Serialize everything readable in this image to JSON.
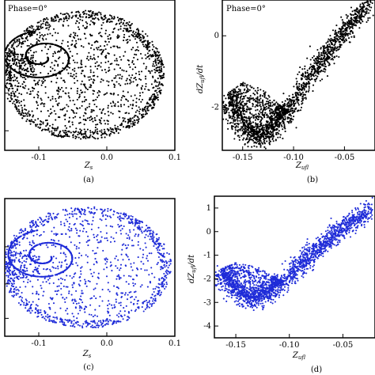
{
  "chart_data": [
    {
      "type": "scatter",
      "panel": "a",
      "caption": "(a)",
      "annotation": "Phase=0°",
      "xlabel": "Z_s",
      "ylabel": "",
      "xlim": [
        -0.15,
        0.1
      ],
      "xticks": [
        -0.1,
        0.0,
        0.1
      ],
      "xtick_labels": [
        "-0.1",
        "0.0",
        "0.1"
      ],
      "color": "#000000",
      "attractor": {
        "cx": -0.035,
        "cy": 0.5,
        "rx": 0.12,
        "ry": 0.43,
        "hole_x": -0.095,
        "hole_y": 0.38
      },
      "point_count": 2600
    },
    {
      "type": "scatter",
      "panel": "b",
      "caption": "(b)",
      "annotation": "Phase=0°",
      "xlabel": "Z_ufl",
      "ylabel": "dZ_ufl/dt",
      "xlim": [
        -0.17,
        -0.02
      ],
      "ylim": [
        -3.2,
        1.0
      ],
      "xticks": [
        -0.15,
        -0.1,
        -0.05
      ],
      "xtick_labels": [
        "-0.15",
        "-0.10",
        "-0.05"
      ],
      "yticks": [
        0,
        -2
      ],
      "ytick_labels": [
        "0",
        "-2"
      ],
      "color": "#000000",
      "point_count": 2200
    },
    {
      "type": "scatter",
      "panel": "c",
      "caption": "(c)",
      "annotation": "",
      "xlabel": "Z_s",
      "ylabel": "",
      "xlim": [
        -0.15,
        0.1
      ],
      "xticks": [
        -0.1,
        0.0,
        0.1
      ],
      "xtick_labels": [
        "-0.1",
        "0.0",
        "0.1"
      ],
      "color": "#1f2cd8",
      "attractor": {
        "cx": -0.03,
        "cy": 0.5,
        "rx": 0.125,
        "ry": 0.44,
        "hole_x": -0.09,
        "hole_y": 0.42
      },
      "point_count": 2000
    },
    {
      "type": "scatter",
      "panel": "d",
      "caption": "(d)",
      "annotation": "",
      "xlabel": "Z_ufl",
      "ylabel": "dZ_ufl/dt",
      "xlim": [
        -0.17,
        -0.02
      ],
      "ylim": [
        -4.5,
        1.5
      ],
      "xticks": [
        -0.15,
        -0.1,
        -0.05
      ],
      "xtick_labels": [
        "-0.15",
        "-0.10",
        "-0.05"
      ],
      "yticks": [
        1,
        0,
        -1,
        -2,
        -3,
        -4
      ],
      "ytick_labels": [
        "1",
        "0",
        "-1",
        "-2",
        "-3",
        "-4"
      ],
      "color": "#1f2cd8",
      "point_count": 2200
    }
  ]
}
